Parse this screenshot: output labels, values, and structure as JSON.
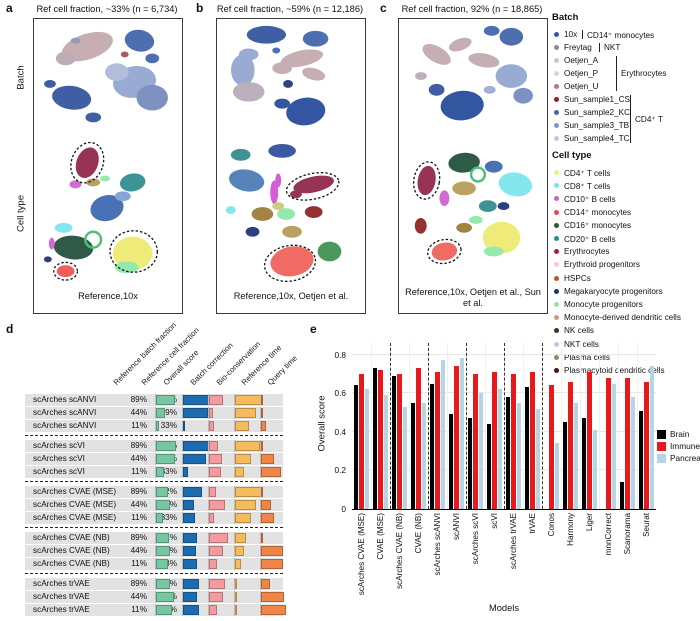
{
  "figure": {
    "panel_labels": {
      "a": "a",
      "b": "b",
      "c": "c",
      "d": "d",
      "e": "e"
    },
    "row_labels": {
      "top": "Batch",
      "bottom": "Cell type"
    }
  },
  "panels": {
    "a": {
      "title": "Ref cell fraction, ~33% (n = 6,734)",
      "caption": "Reference,10x"
    },
    "b": {
      "title": "Ref cell fraction, ~59% (n = 12,186)",
      "caption": "Reference,10x, Oetjen et al."
    },
    "c": {
      "title": "Ref cell fraction, 92% (n = 18,865)",
      "caption": "Reference,10x, Oetjen et al., Sun et al."
    }
  },
  "legend_batch": {
    "title": "Batch",
    "items": [
      {
        "label": "10x",
        "color": "#3457a5"
      },
      {
        "label": "Freytag",
        "color": "#8e86a0"
      },
      {
        "label": "Oetjen_A",
        "color": "#c8c8c8"
      },
      {
        "label": "Oetjen_P",
        "color": "#d8d4d4"
      },
      {
        "label": "Oetjen_U",
        "color": "#b5767e"
      },
      {
        "label": "Sun_sample1_CS",
        "color": "#8e1f3a"
      },
      {
        "label": "Sun_sample2_KC",
        "color": "#4a5fae"
      },
      {
        "label": "Sun_sample3_TB",
        "color": "#8195cc"
      },
      {
        "label": "Sun_sample4_TC",
        "color": "#c2c9e0"
      }
    ],
    "annotations": [
      {
        "text": "CD14⁺ monocytes",
        "from": 0,
        "to": 0
      },
      {
        "text": "NKT",
        "from": 1,
        "to": 1
      },
      {
        "text": "Erythrocytes",
        "from": 2,
        "to": 4
      },
      {
        "text": "CD4⁺ T",
        "from": 5,
        "to": 8
      }
    ]
  },
  "legend_celltype": {
    "title": "Cell type",
    "items": [
      {
        "label": "CD4⁺ T cells",
        "color": "#f0ee7a"
      },
      {
        "label": "CD8⁺ T cells",
        "color": "#7ae4ee"
      },
      {
        "label": "CD10⁺ B cells",
        "color": "#d05fd0"
      },
      {
        "label": "CD14⁺ monocytes",
        "color": "#e8485a"
      },
      {
        "label": "CD16⁺ monocytes",
        "color": "#1e5c3c"
      },
      {
        "label": "CD20⁺ B cells",
        "color": "#2e8b8b"
      },
      {
        "label": "Erythrocytes",
        "color": "#a82040"
      },
      {
        "label": "Erythroid progenitors",
        "color": "#f5ccd4"
      },
      {
        "label": "HSPCs",
        "color": "#b85c20"
      },
      {
        "label": "Megakaryocyte progenitors",
        "color": "#1c2f78"
      },
      {
        "label": "Monocyte progenitors",
        "color": "#8ce8a4"
      },
      {
        "label": "Monocyte-derived dendritic cells",
        "color": "#c49a92"
      },
      {
        "label": "NK cells",
        "color": "#2e3d20"
      },
      {
        "label": "NKT cells",
        "color": "#c6c6e4"
      },
      {
        "label": "Plasma cells",
        "color": "#8e8e6a"
      },
      {
        "label": "Plasmacytoid dendritic cells",
        "color": "#461220"
      }
    ]
  },
  "chart_data": [
    {
      "type": "bar",
      "title": "",
      "categories": [
        "scArches CVAE (MSE)",
        "CVAE (MSE)",
        "scArches CVAE (NB)",
        "CVAE (NB)",
        "scArches scANVI",
        "scANVI",
        "scArches scVI",
        "scVI",
        "scArches trVAE",
        "trVAE",
        "Conos",
        "Harmony",
        "Liger",
        "mnnCorrect",
        "Scanorama",
        "Seurat"
      ],
      "series": [
        {
          "name": "Brain",
          "color": "#000000",
          "values": [
            0.64,
            0.73,
            0.69,
            0.55,
            0.65,
            0.49,
            0.47,
            0.44,
            0.58,
            0.63,
            null,
            0.45,
            0.47,
            null,
            0.14,
            0.51
          ]
        },
        {
          "name": "Immune",
          "color": "#e8191c",
          "values": [
            0.7,
            0.72,
            0.7,
            0.73,
            0.71,
            0.74,
            0.7,
            0.71,
            0.7,
            0.71,
            0.64,
            0.66,
            0.71,
            0.68,
            0.68,
            0.66
          ]
        },
        {
          "name": "Pancreas",
          "color": "#b5d5e5",
          "values": [
            0.62,
            0.59,
            0.53,
            0.55,
            0.77,
            0.78,
            0.6,
            0.62,
            0.55,
            0.52,
            0.34,
            0.55,
            0.41,
            0.65,
            0.58,
            0.74
          ]
        }
      ],
      "xlabel": "Models",
      "ylabel": "Overall score",
      "ylim": [
        0,
        0.8
      ],
      "ytick_labels": [
        "0",
        "0.2",
        "0.4",
        "0.6",
        "0.8"
      ],
      "ytick_values": [
        0,
        0.2,
        0.4,
        0.6,
        0.8
      ],
      "separators_after": [
        1,
        3,
        5,
        7,
        9
      ],
      "grid": true,
      "legend_position": "right"
    },
    {
      "type": "table",
      "headers": [
        "Reference batch fraction",
        "Reference cell fraction",
        "Overall score",
        "Batch correction",
        "Bio-conservation",
        "Reference time",
        "Query time"
      ],
      "score_colors": {
        "overall": "#74c7a0",
        "batch_correction": "#1d6cb0",
        "bio_conservation": "#f59ba0",
        "reference_time": "#f6bc5c",
        "query_time": "#f08548"
      },
      "groups_of": 3,
      "rows": [
        {
          "model": "scArches scANVI",
          "ref_batch_fraction": "89%",
          "ref_cell_fraction": "92%",
          "scores": {
            "overall": 0.72,
            "batch_correction": 1.0,
            "bio_conservation": 0.55,
            "reference_time": 1.0,
            "query_time": 0.05
          }
        },
        {
          "model": "scArches scANVI",
          "ref_batch_fraction": "44%",
          "ref_cell_fraction": "59%",
          "scores": {
            "overall": 0.33,
            "batch_correction": 0.95,
            "bio_conservation": 0.15,
            "reference_time": 0.8,
            "query_time": 0.08
          }
        },
        {
          "model": "scArches scANVI",
          "ref_batch_fraction": "11%",
          "ref_cell_fraction": "33%",
          "scores": {
            "overall": 0.12,
            "batch_correction": 0.03,
            "bio_conservation": 0.18,
            "reference_time": 0.55,
            "query_time": 0.2
          }
        },
        {
          "model": "scArches scVI",
          "ref_batch_fraction": "89%",
          "ref_cell_fraction": "92%",
          "scores": {
            "overall": 0.78,
            "batch_correction": 1.0,
            "bio_conservation": 0.35,
            "reference_time": 0.95,
            "query_time": 0.04
          }
        },
        {
          "model": "scArches scVI",
          "ref_batch_fraction": "44%",
          "ref_cell_fraction": "59%",
          "scores": {
            "overall": 0.72,
            "batch_correction": 0.9,
            "bio_conservation": 0.5,
            "reference_time": 0.6,
            "query_time": 0.5
          }
        },
        {
          "model": "scArches scVI",
          "ref_batch_fraction": "11%",
          "ref_cell_fraction": "33%",
          "scores": {
            "overall": 0.3,
            "batch_correction": 0.18,
            "bio_conservation": 0.45,
            "reference_time": 0.35,
            "query_time": 0.75
          }
        },
        {
          "model": "scArches CVAE (MSE)",
          "ref_batch_fraction": "89%",
          "ref_cell_fraction": "92%",
          "scores": {
            "overall": 0.45,
            "batch_correction": 0.72,
            "bio_conservation": 0.28,
            "reference_time": 1.0,
            "query_time": 0.05
          }
        },
        {
          "model": "scArches CVAE (MSE)",
          "ref_batch_fraction": "44%",
          "ref_cell_fraction": "59%",
          "scores": {
            "overall": 0.55,
            "batch_correction": 0.42,
            "bio_conservation": 0.62,
            "reference_time": 0.8,
            "query_time": 0.4
          }
        },
        {
          "model": "scArches CVAE (MSE)",
          "ref_batch_fraction": "11%",
          "ref_cell_fraction": "33%",
          "scores": {
            "overall": 0.25,
            "batch_correction": 0.45,
            "bio_conservation": 0.18,
            "reference_time": 0.6,
            "query_time": 0.5
          }
        },
        {
          "model": "scArches CVAE (NB)",
          "ref_batch_fraction": "89%",
          "ref_cell_fraction": "92%",
          "scores": {
            "overall": 0.5,
            "batch_correction": 0.55,
            "bio_conservation": 0.72,
            "reference_time": 0.42,
            "query_time": 0.03
          }
        },
        {
          "model": "scArches CVAE (NB)",
          "ref_batch_fraction": "44%",
          "ref_cell_fraction": "59%",
          "scores": {
            "overall": 0.55,
            "batch_correction": 0.5,
            "bio_conservation": 0.52,
            "reference_time": 0.33,
            "query_time": 0.85
          }
        },
        {
          "model": "scArches CVAE (NB)",
          "ref_batch_fraction": "11%",
          "ref_cell_fraction": "33%",
          "scores": {
            "overall": 0.45,
            "batch_correction": 0.52,
            "bio_conservation": 0.32,
            "reference_time": 0.22,
            "query_time": 0.85
          }
        },
        {
          "model": "scArches trVAE",
          "ref_batch_fraction": "89%",
          "ref_cell_fraction": "92%",
          "scores": {
            "overall": 0.55,
            "batch_correction": 0.6,
            "bio_conservation": 0.6,
            "reference_time": 0.08,
            "query_time": 0.35
          }
        },
        {
          "model": "scArches trVAE",
          "ref_batch_fraction": "44%",
          "ref_cell_fraction": "59%",
          "scores": {
            "overall": 0.68,
            "batch_correction": 0.55,
            "bio_conservation": 0.55,
            "reference_time": 0.03,
            "query_time": 0.9
          }
        },
        {
          "model": "scArches trVAE",
          "ref_batch_fraction": "11%",
          "ref_cell_fraction": "33%",
          "scores": {
            "overall": 0.62,
            "batch_correction": 0.6,
            "bio_conservation": 0.32,
            "reference_time": 0.02,
            "query_time": 0.95
          }
        }
      ]
    }
  ]
}
